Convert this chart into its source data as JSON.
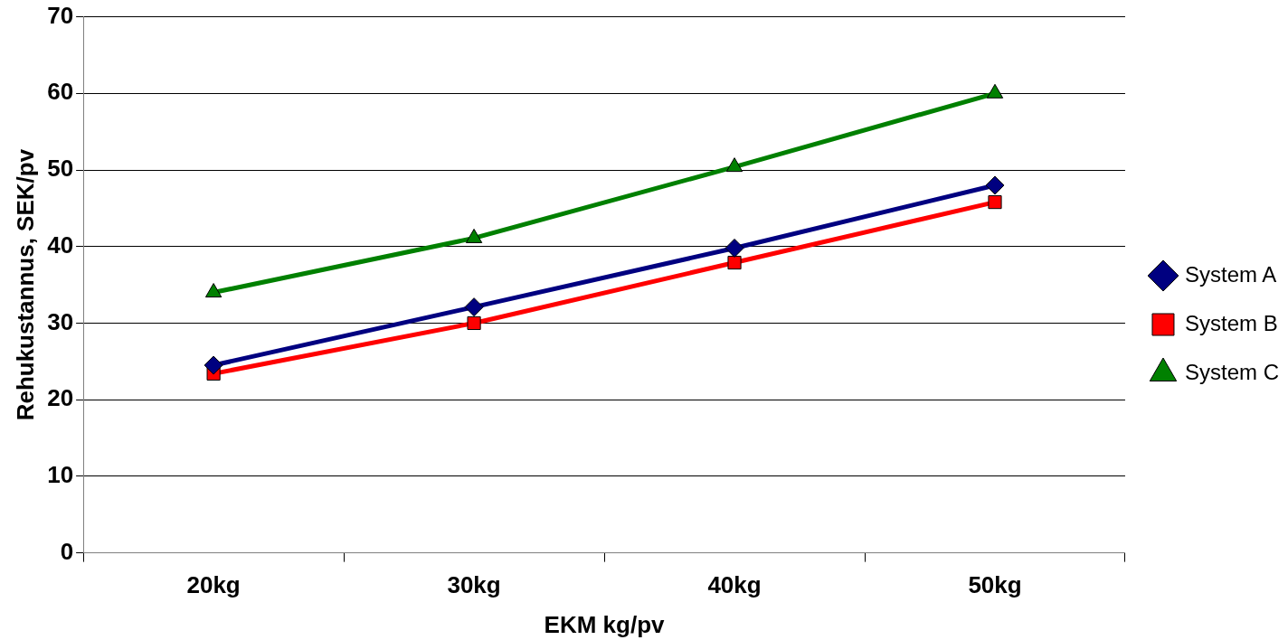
{
  "chart_data": {
    "type": "line",
    "xlabel": "EKM kg/pv",
    "ylabel": "Rehukustannus, SEK/pv",
    "categories": [
      "20kg",
      "30kg",
      "40kg",
      "50kg"
    ],
    "series": [
      {
        "name": "System A",
        "color": "#000080",
        "marker": "diamond",
        "values": [
          24.5,
          32.1,
          39.8,
          48.0
        ]
      },
      {
        "name": "System B",
        "color": "#ff0000",
        "marker": "square",
        "values": [
          23.4,
          30.0,
          37.9,
          45.8
        ]
      },
      {
        "name": "System C",
        "color": "#008000",
        "marker": "triangle",
        "values": [
          34.0,
          41.1,
          50.4,
          60.0
        ]
      }
    ],
    "ylim": [
      0,
      70
    ],
    "yticks": [
      0,
      10,
      20,
      30,
      40,
      50,
      60,
      70
    ],
    "grid": "y",
    "legend": "right",
    "line_style": "solid"
  }
}
